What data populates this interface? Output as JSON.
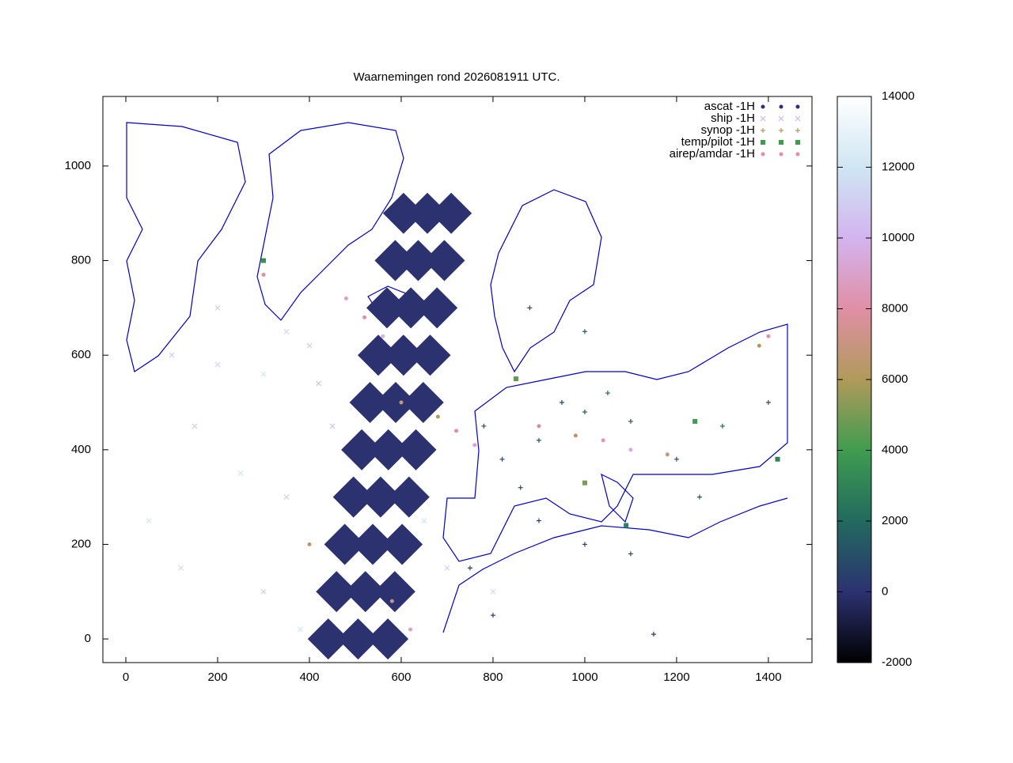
{
  "chart_data": {
    "type": "scatter",
    "title": "Waarnemingen rond 2026081911 UTC.",
    "xlim": [
      -50,
      1495
    ],
    "ylim": [
      -50,
      1147
    ],
    "xticks": [
      0,
      200,
      400,
      600,
      800,
      1000,
      1200,
      1400
    ],
    "yticks": [
      0,
      200,
      400,
      600,
      800,
      1000
    ],
    "cblim": [
      -2000,
      14000
    ],
    "cbticks": [
      -2000,
      0,
      2000,
      4000,
      6000,
      8000,
      10000,
      12000,
      14000
    ],
    "palette": [
      "#000000",
      "#2c3270",
      "#226a5f",
      "#3f9c4f",
      "#b09a5a",
      "#e08fa5",
      "#d3b4ef",
      "#cfe6f3",
      "#ffffff"
    ],
    "legend": "top-right",
    "series": [
      {
        "name": "ascat -1H",
        "marker": "diamond-big",
        "color": "#2c3270",
        "x": [
          441,
          506,
          571,
          459,
          522,
          586,
          477,
          538,
          602,
          496,
          555,
          617,
          514,
          572,
          632,
          532,
          588,
          648,
          550,
          605,
          663,
          569,
          621,
          678,
          587,
          637,
          694,
          605,
          657,
          709
        ],
        "y": [
          0,
          0,
          0,
          100,
          100,
          100,
          200,
          200,
          200,
          300,
          300,
          300,
          400,
          400,
          400,
          500,
          500,
          500,
          600,
          600,
          600,
          700,
          700,
          700,
          800,
          800,
          800,
          900,
          900,
          900
        ],
        "z": [
          0,
          0,
          0,
          0,
          0,
          0,
          0,
          0,
          0,
          0,
          0,
          0,
          0,
          0,
          0,
          0,
          0,
          0,
          0,
          0,
          0,
          0,
          0,
          0,
          0,
          0,
          0,
          0,
          0,
          0
        ]
      },
      {
        "name": "ship -1H",
        "marker": "cross",
        "color": "#d3b4ef",
        "x": [
          100,
          200,
          300,
          400,
          150,
          250,
          350,
          450,
          50,
          120,
          300,
          380,
          700,
          800,
          650,
          200,
          350,
          420
        ],
        "y": [
          600,
          580,
          560,
          620,
          450,
          350,
          300,
          450,
          250,
          150,
          100,
          20,
          150,
          100,
          250,
          700,
          650,
          540
        ],
        "z": [
          11000,
          11500,
          12000,
          11000,
          11000,
          12000,
          11000,
          10500,
          12000,
          11500,
          11000,
          12000,
          11000,
          11500,
          12000,
          11000,
          11500,
          10500
        ]
      },
      {
        "name": "synop -1H",
        "marker": "plus",
        "color": "#b09a5a",
        "x": [
          780,
          820,
          860,
          900,
          950,
          1000,
          1050,
          1100,
          1200,
          1300,
          1400,
          900,
          1000,
          1100,
          1150,
          800,
          750,
          880,
          1000,
          1250
        ],
        "y": [
          450,
          380,
          320,
          420,
          500,
          480,
          520,
          460,
          380,
          450,
          500,
          250,
          200,
          180,
          10,
          50,
          150,
          700,
          650,
          300
        ],
        "z": [
          1000,
          500,
          800,
          1200,
          600,
          1500,
          2000,
          900,
          700,
          1800,
          1000,
          400,
          300,
          600,
          200,
          100,
          500,
          1000,
          1500,
          1200
        ]
      },
      {
        "name": "temp/pilot -1H",
        "marker": "square",
        "color": "#3f9c4f",
        "x": [
          1420,
          1240,
          1000,
          300,
          850,
          1090
        ],
        "y": [
          380,
          460,
          330,
          800,
          550,
          240
        ],
        "z": [
          3000,
          4000,
          5000,
          3500,
          4500,
          3000
        ]
      },
      {
        "name": "airep/amdar -1H",
        "marker": "dot",
        "color": "#e08fa5",
        "x": [
          480,
          520,
          560,
          600,
          680,
          720,
          760,
          900,
          980,
          1040,
          1100,
          1180,
          1380,
          1400,
          620,
          580,
          300,
          400
        ],
        "y": [
          720,
          680,
          640,
          500,
          470,
          440,
          410,
          450,
          430,
          420,
          400,
          390,
          620,
          640,
          20,
          80,
          770,
          200
        ],
        "z": [
          9000,
          8000,
          10000,
          7000,
          6000,
          8000,
          9000,
          7500,
          6500,
          8500,
          9500,
          7000,
          6000,
          8000,
          9000,
          7000,
          8000,
          6500
        ]
      }
    ]
  }
}
